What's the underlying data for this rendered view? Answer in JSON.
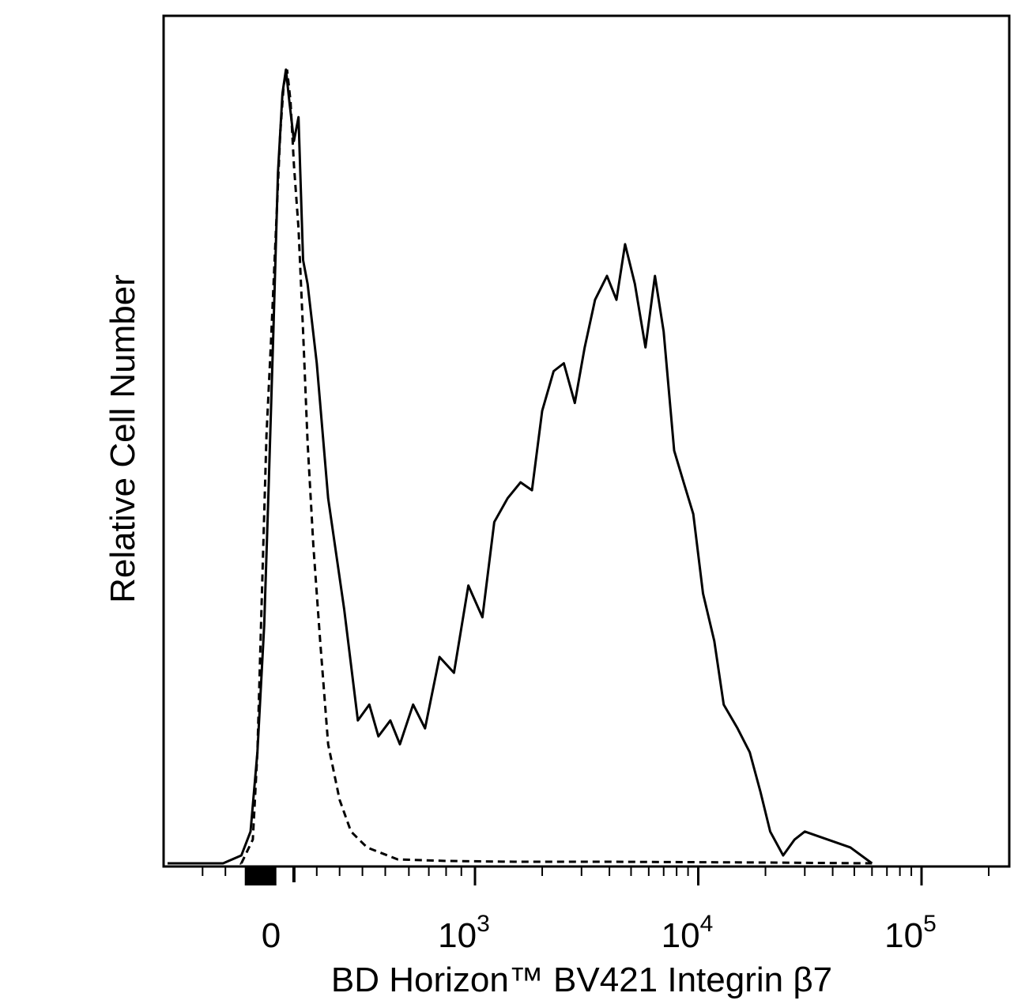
{
  "chart_data": {
    "type": "line",
    "xlabel": "BD Horizon™ BV421 Integrin β7",
    "ylabel": "Relative Cell Number",
    "x_scale": "biexponential",
    "xlim": [
      -300,
      250000
    ],
    "ylim": [
      0,
      1
    ],
    "ticks": [
      {
        "label": "0",
        "value": 0
      },
      {
        "label": "10",
        "sup": "3",
        "value": 1000
      },
      {
        "label": "10",
        "sup": "4",
        "value": 10000
      },
      {
        "label": "10",
        "sup": "5",
        "value": 100000
      }
    ],
    "grid": false,
    "series": [
      {
        "style": "solid",
        "x": [
          -210,
          -130,
          -90,
          -60,
          -30,
          -10,
          10,
          30,
          50,
          65,
          80,
          100,
          120,
          140,
          160,
          200,
          250,
          320,
          380,
          430,
          470,
          520,
          560,
          620,
          680,
          760,
          850,
          950,
          1080,
          1220,
          1400,
          1600,
          1800,
          2000,
          2250,
          2500,
          2800,
          3100,
          3450,
          3900,
          4300,
          4700,
          5200,
          5800,
          6400,
          7000,
          7800,
          8600,
          9500,
          10500,
          11800,
          13000,
          15000,
          17000,
          19000,
          21000,
          24000,
          27000,
          30000,
          38000,
          48000,
          60000
        ],
        "y": [
          0.0,
          0.01,
          0.04,
          0.14,
          0.3,
          0.48,
          0.67,
          0.87,
          0.97,
          1.0,
          0.96,
          0.91,
          0.94,
          0.76,
          0.73,
          0.63,
          0.46,
          0.32,
          0.18,
          0.2,
          0.16,
          0.18,
          0.15,
          0.2,
          0.17,
          0.26,
          0.24,
          0.35,
          0.31,
          0.43,
          0.46,
          0.48,
          0.47,
          0.57,
          0.62,
          0.63,
          0.58,
          0.65,
          0.71,
          0.74,
          0.71,
          0.78,
          0.73,
          0.65,
          0.74,
          0.67,
          0.52,
          0.48,
          0.44,
          0.34,
          0.28,
          0.2,
          0.17,
          0.14,
          0.09,
          0.04,
          0.01,
          0.03,
          0.04,
          0.03,
          0.02,
          0.0
        ]
      },
      {
        "style": "dashed",
        "x": [
          -130,
          -80,
          -60,
          -40,
          -20,
          0,
          20,
          40,
          55,
          70,
          85,
          100,
          120,
          140,
          160,
          185,
          215,
          250,
          300,
          350,
          420,
          550,
          800,
          1500,
          4000,
          20000,
          60000
        ],
        "y": [
          0.0,
          0.03,
          0.14,
          0.34,
          0.54,
          0.66,
          0.79,
          0.92,
          0.98,
          1.0,
          0.96,
          0.88,
          0.8,
          0.67,
          0.53,
          0.4,
          0.28,
          0.15,
          0.08,
          0.04,
          0.02,
          0.005,
          0.003,
          0.002,
          0.002,
          0.001,
          0.0
        ]
      }
    ]
  }
}
